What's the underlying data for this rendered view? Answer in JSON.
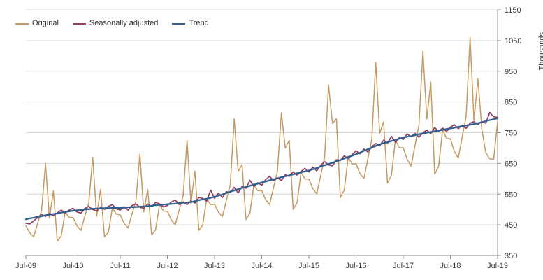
{
  "chart_data": {
    "type": "line",
    "title": "",
    "unit_label": "Thousands",
    "x_range": {
      "start": "Jul-2009",
      "end": "Jul-2019",
      "frequency": "monthly",
      "points": 121
    },
    "x_tick_labels": [
      "Jul-09",
      "Jul-10",
      "Jul-11",
      "Jul-12",
      "Jul-13",
      "Jul-14",
      "Jul-15",
      "Jul-16",
      "Jul-17",
      "Jul-18",
      "Jul-19"
    ],
    "x_tick_month_indices": [
      0,
      12,
      24,
      36,
      48,
      60,
      72,
      84,
      96,
      108,
      120
    ],
    "y_ticks": [
      350,
      450,
      550,
      650,
      750,
      850,
      950,
      1050,
      1150
    ],
    "ylim": [
      350,
      1150
    ],
    "grid": true,
    "legend_position": "top-left",
    "series": [
      {
        "name": "Original",
        "color": "#C59A63",
        "values": [
          447,
          424,
          411,
          455,
          497,
          650,
          471,
          560,
          397,
          414,
          492,
          474,
          474,
          447,
          432,
          478,
          521,
          670,
          478,
          565,
          411,
          426,
          505,
          485,
          482,
          455,
          440,
          485,
          528,
          680,
          492,
          565,
          417,
          434,
          515,
          495,
          494,
          466,
          450,
          498,
          543,
          725,
          520,
          625,
          432,
          450,
          535,
          516,
          517,
          491,
          477,
          529,
          580,
          795,
          625,
          645,
          467,
          488,
          581,
          561,
          562,
          532,
          516,
          571,
          625,
          815,
          700,
          725,
          500,
          522,
          621,
          599,
          599,
          568,
          551,
          611,
          670,
          905,
          780,
          795,
          539,
          563,
          671,
          648,
          649,
          617,
          600,
          665,
          729,
          980,
          748,
          785,
          586,
          611,
          727,
          701,
          701,
          663,
          641,
          709,
          775,
          1015,
          795,
          915,
          615,
          640,
          759,
          732,
          730,
          689,
          667,
          736,
          804,
          1060,
          790,
          925,
          760,
          685,
          665,
          663,
          785
        ]
      },
      {
        "name": "Seasonally adjusted",
        "color": "#913D64",
        "values": [
          455,
          453,
          463,
          474,
          484,
          477,
          488,
          479,
          489,
          498,
          489,
          498,
          504,
          492,
          488,
          503,
          510,
          500,
          495,
          507,
          500,
          510,
          516,
          502,
          498,
          509,
          498,
          513,
          518,
          507,
          504,
          518,
          509,
          523,
          518,
          508,
          513,
          524,
          531,
          516,
          525,
          516,
          528,
          521,
          539,
          536,
          527,
          563,
          536,
          553,
          539,
          558,
          555,
          572,
          554,
          575,
          569,
          595,
          575,
          587,
          579,
          597,
          608,
          594,
          603,
          594,
          613,
          608,
          622,
          612,
          624,
          634,
          622,
          638,
          626,
          644,
          656,
          645,
          642,
          662,
          659,
          675,
          665,
          678,
          691,
          681,
          697,
          687,
          704,
          715,
          707,
          726,
          716,
          738,
          719,
          734,
          728,
          746,
          737,
          748,
          735,
          750,
          758,
          747,
          767,
          754,
          765,
          754,
          768,
          776,
          763,
          774,
          764,
          781,
          786,
          777,
          786,
          781,
          816,
          802,
          800
        ]
      },
      {
        "name": "Trend",
        "color": "#2F608F",
        "values": [
          468,
          471,
          473,
          476,
          478,
          481,
          483,
          485,
          487,
          490,
          492,
          494,
          496,
          497,
          498,
          500,
          501,
          502,
          503,
          503,
          504,
          504,
          505,
          505,
          505,
          506,
          507,
          508,
          508,
          509,
          510,
          511,
          512,
          514,
          515,
          516,
          517,
          518,
          519,
          521,
          522,
          523,
          524,
          527,
          530,
          533,
          535,
          538,
          541,
          545,
          549,
          554,
          558,
          562,
          566,
          570,
          573,
          577,
          581,
          584,
          588,
          591,
          595,
          598,
          601,
          605,
          608,
          611,
          614,
          618,
          621,
          624,
          627,
          631,
          635,
          640,
          644,
          648,
          652,
          657,
          661,
          666,
          671,
          675,
          680,
          685,
          691,
          696,
          701,
          707,
          712,
          716,
          719,
          723,
          727,
          730,
          734,
          737,
          739,
          742,
          745,
          747,
          750,
          752,
          755,
          757,
          759,
          762,
          764,
          766,
          769,
          771,
          773,
          776,
          778,
          781,
          784,
          788,
          791,
          794,
          797
        ]
      }
    ]
  },
  "colors": {
    "grid": "#D9D9D9",
    "axis": "#8C8C8C",
    "tick_text": "#3d3d3d",
    "background": "#FFFFFF"
  }
}
